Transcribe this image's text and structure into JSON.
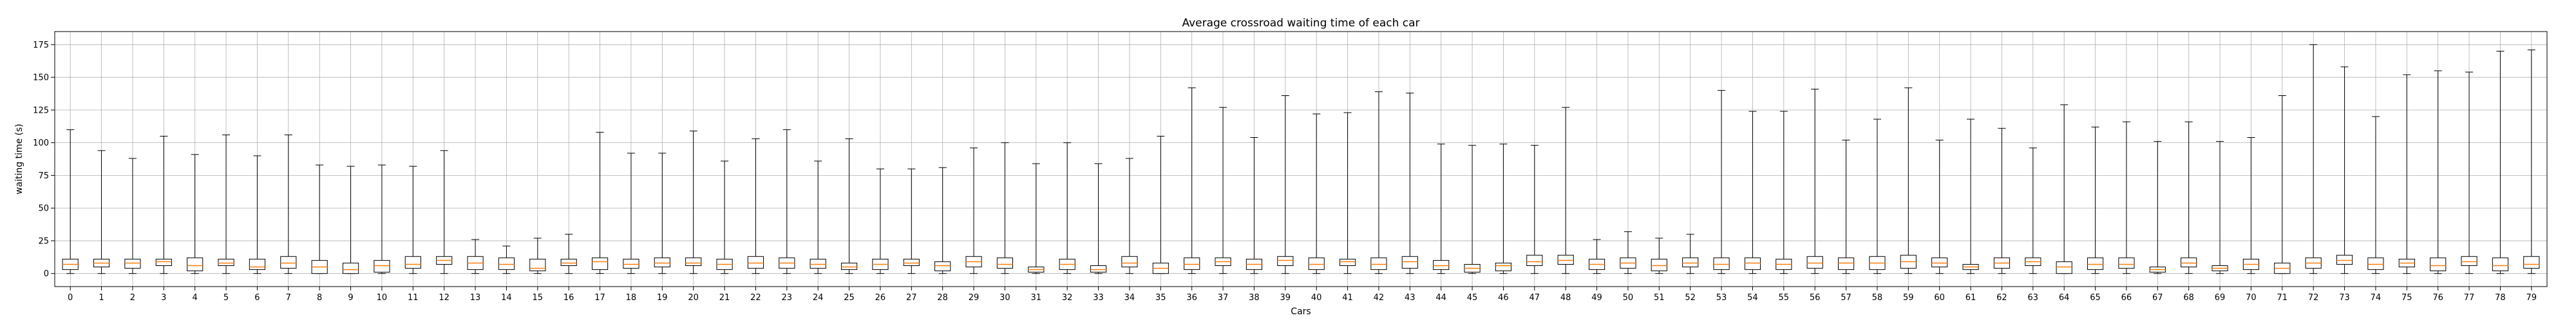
{
  "chart_data": {
    "type": "box",
    "title": "Average crossroad waiting time of each car",
    "xlabel": "Cars",
    "ylabel": "waiting time (s)",
    "ylim": [
      -10,
      185
    ],
    "yticks": [
      0,
      25,
      50,
      75,
      100,
      125,
      150,
      175
    ],
    "grid": true,
    "colors": {
      "box": "#000000",
      "median": "#ff7f0e",
      "grid": "#b0b0b0"
    },
    "categories": [
      "0",
      "1",
      "2",
      "3",
      "4",
      "5",
      "6",
      "7",
      "8",
      "9",
      "10",
      "11",
      "12",
      "13",
      "14",
      "15",
      "16",
      "17",
      "18",
      "19",
      "20",
      "21",
      "22",
      "23",
      "24",
      "25",
      "26",
      "27",
      "28",
      "29",
      "30",
      "31",
      "32",
      "33",
      "34",
      "35",
      "36",
      "37",
      "38",
      "39",
      "40",
      "41",
      "42",
      "43",
      "44",
      "45",
      "46",
      "47",
      "48",
      "49",
      "50",
      "51",
      "52",
      "53",
      "54",
      "55",
      "56",
      "57",
      "58",
      "59",
      "60",
      "61",
      "62",
      "63",
      "64",
      "65",
      "66",
      "67",
      "68",
      "69",
      "70",
      "71",
      "72",
      "73",
      "74",
      "75",
      "76",
      "77",
      "78",
      "79"
    ],
    "boxes": [
      {
        "whislo": 0,
        "q1": 3,
        "med": 7,
        "q3": 11,
        "whishi": 110
      },
      {
        "whislo": 0,
        "q1": 5,
        "med": 8,
        "q3": 11,
        "whishi": 94
      },
      {
        "whislo": 0,
        "q1": 4,
        "med": 8,
        "q3": 11,
        "whishi": 88
      },
      {
        "whislo": 0,
        "q1": 6,
        "med": 9,
        "q3": 11,
        "whishi": 105
      },
      {
        "whislo": 0,
        "q1": 2,
        "med": 6,
        "q3": 12,
        "whishi": 91
      },
      {
        "whislo": 0,
        "q1": 6,
        "med": 8,
        "q3": 11,
        "whishi": 106
      },
      {
        "whislo": 0,
        "q1": 3,
        "med": 5,
        "q3": 11,
        "whishi": 90
      },
      {
        "whislo": 0,
        "q1": 4,
        "med": 8,
        "q3": 13,
        "whishi": 106
      },
      {
        "whislo": 0,
        "q1": 0,
        "med": 5,
        "q3": 10,
        "whishi": 83
      },
      {
        "whislo": 0,
        "q1": 0,
        "med": 3,
        "q3": 8,
        "whishi": 82
      },
      {
        "whislo": 0,
        "q1": 1,
        "med": 6,
        "q3": 10,
        "whishi": 83
      },
      {
        "whislo": 0,
        "q1": 4,
        "med": 7,
        "q3": 13,
        "whishi": 82
      },
      {
        "whislo": 0,
        "q1": 7,
        "med": 10,
        "q3": 13,
        "whishi": 94
      },
      {
        "whislo": 0,
        "q1": 3,
        "med": 8,
        "q3": 13,
        "whishi": 26
      },
      {
        "whislo": 0,
        "q1": 3,
        "med": 7,
        "q3": 12,
        "whishi": 21
      },
      {
        "whislo": 0,
        "q1": 2,
        "med": 4,
        "q3": 11,
        "whishi": 27
      },
      {
        "whislo": 0,
        "q1": 6,
        "med": 8,
        "q3": 11,
        "whishi": 30
      },
      {
        "whislo": 0,
        "q1": 3,
        "med": 9,
        "q3": 12,
        "whishi": 108
      },
      {
        "whislo": 0,
        "q1": 4,
        "med": 7,
        "q3": 11,
        "whishi": 92
      },
      {
        "whislo": 0,
        "q1": 5,
        "med": 8,
        "q3": 12,
        "whishi": 92
      },
      {
        "whislo": 0,
        "q1": 6,
        "med": 8,
        "q3": 12,
        "whishi": 109
      },
      {
        "whislo": 0,
        "q1": 3,
        "med": 7,
        "q3": 11,
        "whishi": 86
      },
      {
        "whislo": 0,
        "q1": 4,
        "med": 8,
        "q3": 13,
        "whishi": 103
      },
      {
        "whislo": 0,
        "q1": 4,
        "med": 8,
        "q3": 12,
        "whishi": 110
      },
      {
        "whislo": 0,
        "q1": 4,
        "med": 7,
        "q3": 11,
        "whishi": 86
      },
      {
        "whislo": 0,
        "q1": 3,
        "med": 5,
        "q3": 8,
        "whishi": 103
      },
      {
        "whislo": 0,
        "q1": 3,
        "med": 7,
        "q3": 11,
        "whishi": 80
      },
      {
        "whislo": 0,
        "q1": 6,
        "med": 8,
        "q3": 11,
        "whishi": 80
      },
      {
        "whislo": 0,
        "q1": 2,
        "med": 6,
        "q3": 9,
        "whishi": 81
      },
      {
        "whislo": 0,
        "q1": 5,
        "med": 9,
        "q3": 13,
        "whishi": 96
      },
      {
        "whislo": 0,
        "q1": 4,
        "med": 7,
        "q3": 12,
        "whishi": 100
      },
      {
        "whislo": 0,
        "q1": 1,
        "med": 3,
        "q3": 5,
        "whishi": 84
      },
      {
        "whislo": 0,
        "q1": 3,
        "med": 7,
        "q3": 11,
        "whishi": 100
      },
      {
        "whislo": 0,
        "q1": 1,
        "med": 3,
        "q3": 6,
        "whishi": 84
      },
      {
        "whislo": 0,
        "q1": 5,
        "med": 8,
        "q3": 13,
        "whishi": 88
      },
      {
        "whislo": 0,
        "q1": 0,
        "med": 4,
        "q3": 8,
        "whishi": 105
      },
      {
        "whislo": 0,
        "q1": 3,
        "med": 7,
        "q3": 12,
        "whishi": 142
      },
      {
        "whislo": 0,
        "q1": 6,
        "med": 9,
        "q3": 12,
        "whishi": 127
      },
      {
        "whislo": 0,
        "q1": 3,
        "med": 7,
        "q3": 11,
        "whishi": 104
      },
      {
        "whislo": 0,
        "q1": 6,
        "med": 10,
        "q3": 13,
        "whishi": 136
      },
      {
        "whislo": 0,
        "q1": 3,
        "med": 7,
        "q3": 12,
        "whishi": 122
      },
      {
        "whislo": 0,
        "q1": 6,
        "med": 9,
        "q3": 11,
        "whishi": 123
      },
      {
        "whislo": 0,
        "q1": 3,
        "med": 7,
        "q3": 12,
        "whishi": 139
      },
      {
        "whislo": 0,
        "q1": 4,
        "med": 9,
        "q3": 13,
        "whishi": 138
      },
      {
        "whislo": 0,
        "q1": 3,
        "med": 6,
        "q3": 10,
        "whishi": 99
      },
      {
        "whislo": 0,
        "q1": 1,
        "med": 4,
        "q3": 7,
        "whishi": 98
      },
      {
        "whislo": 0,
        "q1": 2,
        "med": 6,
        "q3": 8,
        "whishi": 99
      },
      {
        "whislo": 0,
        "q1": 6,
        "med": 9,
        "q3": 14,
        "whishi": 98
      },
      {
        "whislo": 0,
        "q1": 7,
        "med": 10,
        "q3": 14,
        "whishi": 127
      },
      {
        "whislo": 0,
        "q1": 3,
        "med": 7,
        "q3": 11,
        "whishi": 26
      },
      {
        "whislo": 0,
        "q1": 4,
        "med": 8,
        "q3": 12,
        "whishi": 32
      },
      {
        "whislo": 0,
        "q1": 2,
        "med": 6,
        "q3": 11,
        "whishi": 27
      },
      {
        "whislo": 0,
        "q1": 5,
        "med": 8,
        "q3": 12,
        "whishi": 30
      },
      {
        "whislo": 0,
        "q1": 3,
        "med": 7,
        "q3": 12,
        "whishi": 140
      },
      {
        "whislo": 0,
        "q1": 3,
        "med": 8,
        "q3": 12,
        "whishi": 124
      },
      {
        "whislo": 0,
        "q1": 3,
        "med": 7,
        "q3": 11,
        "whishi": 124
      },
      {
        "whislo": 0,
        "q1": 4,
        "med": 8,
        "q3": 13,
        "whishi": 141
      },
      {
        "whislo": 0,
        "q1": 3,
        "med": 8,
        "q3": 12,
        "whishi": 102
      },
      {
        "whislo": 0,
        "q1": 3,
        "med": 8,
        "q3": 13,
        "whishi": 118
      },
      {
        "whislo": 0,
        "q1": 4,
        "med": 9,
        "q3": 14,
        "whishi": 142
      },
      {
        "whislo": 0,
        "q1": 5,
        "med": 8,
        "q3": 12,
        "whishi": 102
      },
      {
        "whislo": 0,
        "q1": 3,
        "med": 5,
        "q3": 7,
        "whishi": 118
      },
      {
        "whislo": 0,
        "q1": 4,
        "med": 8,
        "q3": 12,
        "whishi": 111
      },
      {
        "whislo": 0,
        "q1": 6,
        "med": 9,
        "q3": 12,
        "whishi": 96
      },
      {
        "whislo": 0,
        "q1": 0,
        "med": 5,
        "q3": 9,
        "whishi": 129
      },
      {
        "whislo": 0,
        "q1": 3,
        "med": 7,
        "q3": 12,
        "whishi": 112
      },
      {
        "whislo": 0,
        "q1": 4,
        "med": 7,
        "q3": 12,
        "whishi": 116
      },
      {
        "whislo": 0,
        "q1": 1,
        "med": 3,
        "q3": 5,
        "whishi": 101
      },
      {
        "whislo": 0,
        "q1": 5,
        "med": 8,
        "q3": 12,
        "whishi": 116
      },
      {
        "whislo": 0,
        "q1": 2,
        "med": 4,
        "q3": 6,
        "whishi": 101
      },
      {
        "whislo": 0,
        "q1": 3,
        "med": 7,
        "q3": 11,
        "whishi": 104
      },
      {
        "whislo": 0,
        "q1": 0,
        "med": 4,
        "q3": 8,
        "whishi": 136
      },
      {
        "whislo": 0,
        "q1": 4,
        "med": 8,
        "q3": 12,
        "whishi": 175
      },
      {
        "whislo": 0,
        "q1": 7,
        "med": 10,
        "q3": 14,
        "whishi": 158
      },
      {
        "whislo": 0,
        "q1": 3,
        "med": 7,
        "q3": 12,
        "whishi": 120
      },
      {
        "whislo": 0,
        "q1": 5,
        "med": 8,
        "q3": 11,
        "whishi": 152
      },
      {
        "whislo": 0,
        "q1": 2,
        "med": 6,
        "q3": 12,
        "whishi": 155
      },
      {
        "whislo": 0,
        "q1": 6,
        "med": 9,
        "q3": 13,
        "whishi": 154
      },
      {
        "whislo": 0,
        "q1": 2,
        "med": 6,
        "q3": 12,
        "whishi": 170
      },
      {
        "whislo": 0,
        "q1": 4,
        "med": 7,
        "q3": 13,
        "whishi": 171
      }
    ]
  }
}
